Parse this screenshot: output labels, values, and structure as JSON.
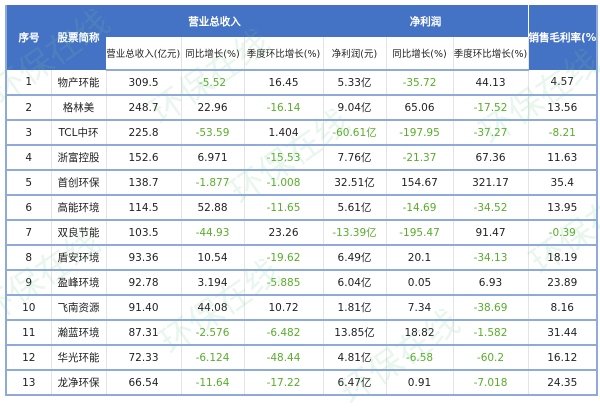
{
  "header": {
    "seq": "序号",
    "name": "股票简称",
    "revenue_group": "营业总收入",
    "profit_group": "净利润",
    "gross_margin": "销售毛利率(%)",
    "revenue": "营业总收入(亿元)",
    "rev_yoy": "同比增长(%)",
    "rev_qoq": "季度环比增长(%)",
    "profit": "净利润(元)",
    "profit_yoy": "同比增长(%)",
    "profit_qoq": "季度环比增长(%)"
  },
  "watermark": "环保在线",
  "colors": {
    "header_bg": "#4472c4",
    "negative": "#5aad2c",
    "row_line": "#8eaadb"
  },
  "rows": [
    [
      "1",
      "物产环能",
      "309.5",
      "-5.52",
      "16.45",
      "5.33亿",
      "-35.72",
      "44.13",
      "4.57"
    ],
    [
      "2",
      "格林美",
      "248.7",
      "22.96",
      "-16.14",
      "9.04亿",
      "65.06",
      "-17.52",
      "13.56"
    ],
    [
      "3",
      "TCL中环",
      "225.8",
      "-53.59",
      "1.404",
      "-60.61亿",
      "-197.95",
      "-37.27",
      "-8.21"
    ],
    [
      "4",
      "浙富控股",
      "152.6",
      "6.971",
      "-15.53",
      "7.76亿",
      "-21.37",
      "67.36",
      "11.63"
    ],
    [
      "5",
      "首创环保",
      "138.7",
      "-1.877",
      "-1.008",
      "32.51亿",
      "154.67",
      "321.17",
      "35.4"
    ],
    [
      "6",
      "高能环境",
      "114.5",
      "52.88",
      "-11.65",
      "5.61亿",
      "-14.69",
      "-34.52",
      "13.95"
    ],
    [
      "7",
      "双良节能",
      "103.5",
      "-44.93",
      "23.26",
      "-13.39亿",
      "-195.47",
      "91.47",
      "-0.39"
    ],
    [
      "8",
      "盾安环境",
      "93.36",
      "10.54",
      "-19.62",
      "6.49亿",
      "20.1",
      "-34.13",
      "18.19"
    ],
    [
      "9",
      "盈峰环境",
      "92.78",
      "3.194",
      "-5.885",
      "6.04亿",
      "0.05",
      "6.93",
      "23.89"
    ],
    [
      "10",
      "飞南资源",
      "91.40",
      "44.08",
      "10.72",
      "1.81亿",
      "7.34",
      "-38.69",
      "8.16"
    ],
    [
      "11",
      "瀚蓝环境",
      "87.31",
      "-2.576",
      "-6.482",
      "13.85亿",
      "18.82",
      "-1.582",
      "31.44"
    ],
    [
      "12",
      "华光环能",
      "72.33",
      "-6.124",
      "-48.44",
      "4.81亿",
      "-6.58",
      "-60.2",
      "16.12"
    ],
    [
      "13",
      "龙净环保",
      "66.54",
      "-11.64",
      "-17.22",
      "6.47亿",
      "0.91",
      "-7.018",
      "24.35"
    ]
  ]
}
